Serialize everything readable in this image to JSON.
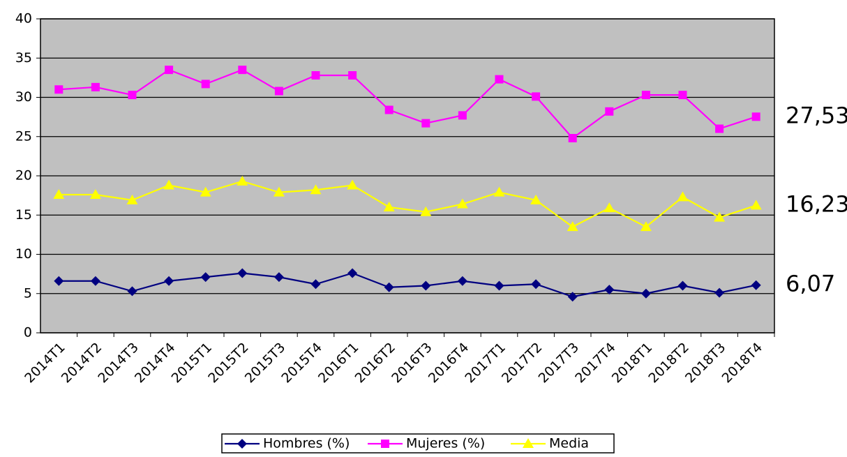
{
  "chart_data": {
    "type": "line",
    "categories": [
      "2014T1",
      "2014T2",
      "2014T3",
      "2014T4",
      "2015T1",
      "2015T2",
      "2015T3",
      "2015T4",
      "2016T1",
      "2016T2",
      "2016T3",
      "2016T4",
      "2017T1",
      "2017T2",
      "2017T3",
      "2017T4",
      "2018T1",
      "2018T2",
      "2018T3",
      "2018T4"
    ],
    "series": [
      {
        "name": "Hombres (%)",
        "color": "#000080",
        "marker": "diamond",
        "values": [
          6.6,
          6.6,
          5.3,
          6.6,
          7.1,
          7.6,
          7.1,
          6.2,
          7.6,
          5.8,
          6.0,
          6.6,
          6.0,
          6.2,
          4.6,
          5.5,
          5.0,
          6.0,
          5.1,
          6.07
        ],
        "value_labels": [
          null,
          null,
          null,
          null,
          null,
          null,
          null,
          null,
          null,
          null,
          null,
          null,
          null,
          null,
          null,
          null,
          null,
          null,
          null,
          "6,07"
        ]
      },
      {
        "name": "Mujeres (%)",
        "color": "#ff00ff",
        "marker": "square",
        "values": [
          31.0,
          31.3,
          30.3,
          33.5,
          31.7,
          33.5,
          30.8,
          32.8,
          32.8,
          28.4,
          26.7,
          27.7,
          32.3,
          30.1,
          24.8,
          28.2,
          30.3,
          30.3,
          26.0,
          27.53
        ],
        "value_labels": [
          null,
          null,
          null,
          null,
          null,
          null,
          null,
          null,
          null,
          null,
          null,
          null,
          null,
          null,
          null,
          null,
          null,
          null,
          null,
          "27,53"
        ]
      },
      {
        "name": "Media",
        "color": "#ffff00",
        "marker": "triangle",
        "values": [
          17.6,
          17.6,
          16.9,
          18.8,
          17.9,
          19.3,
          17.9,
          18.2,
          18.8,
          16.0,
          15.4,
          16.4,
          17.9,
          16.9,
          13.5,
          15.9,
          13.5,
          17.3,
          14.7,
          16.23
        ],
        "value_labels": [
          null,
          null,
          null,
          null,
          null,
          null,
          null,
          null,
          null,
          null,
          null,
          null,
          null,
          null,
          null,
          null,
          null,
          null,
          null,
          "16,23"
        ]
      }
    ],
    "ylim": [
      0,
      40
    ],
    "yticks": [
      0,
      5,
      10,
      15,
      20,
      25,
      30,
      35,
      40
    ],
    "grid": true,
    "legend": "bottom"
  }
}
